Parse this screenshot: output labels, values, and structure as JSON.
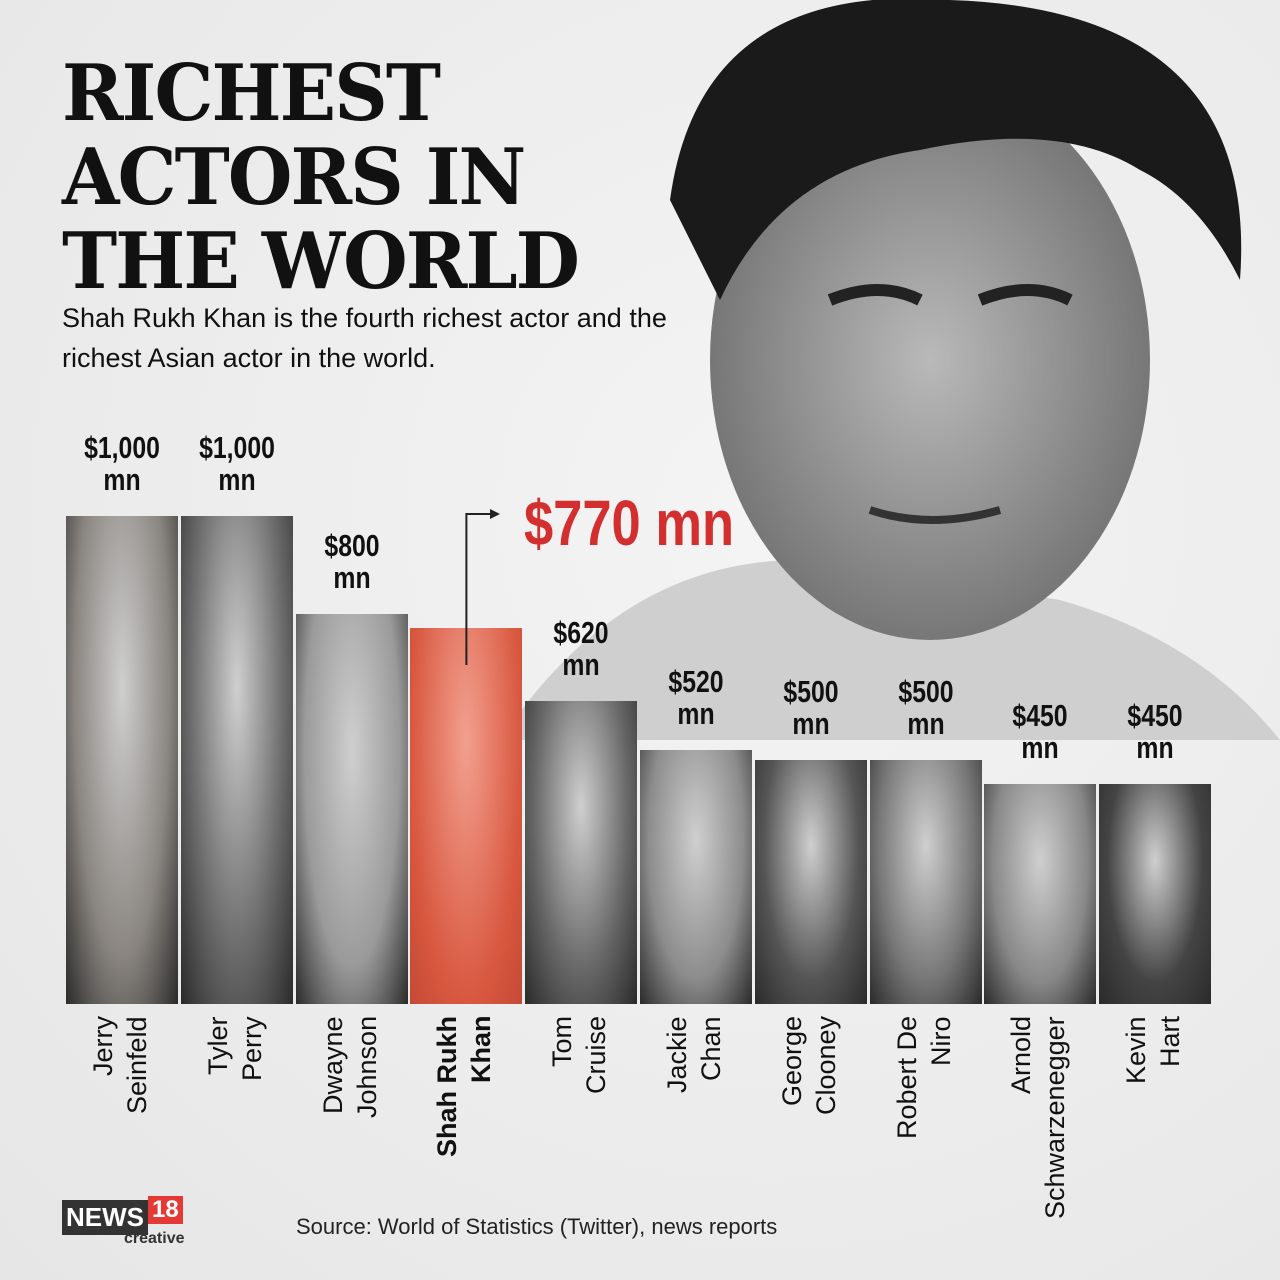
{
  "title_lines": [
    "RICHEST",
    "ACTORS IN",
    "THE WORLD"
  ],
  "subtitle": "Shah Rukh Khan is the fourth richest actor and the richest Asian actor in the world.",
  "source": "Source: World of Statistics (Twitter), news reports",
  "logo": {
    "news": "NEWS",
    "number": "18",
    "sub": "creative"
  },
  "colors": {
    "highlight": "#d32f2f",
    "text": "#111111"
  },
  "chart_data": {
    "type": "bar",
    "title": "RICHEST ACTORS IN THE WORLD",
    "unit": "$ mn",
    "ylim": [
      0,
      1000
    ],
    "highlight": "Shah Rukh Khan",
    "categories": [
      "Jerry Seinfeld",
      "Tyler Perry",
      "Dwayne Johnson",
      "Shah Rukh Khan",
      "Tom Cruise",
      "Jackie Chan",
      "George Clooney",
      "Robert De Niro",
      "Arnold Schwarzenegger",
      "Kevin Hart"
    ],
    "name_lines": [
      [
        "Jerry",
        "Seinfeld"
      ],
      [
        "Tyler",
        "Perry"
      ],
      [
        "Dwayne",
        "Johnson"
      ],
      [
        "Shah Rukh",
        "Khan"
      ],
      [
        "Tom",
        "Cruise"
      ],
      [
        "Jackie",
        "Chan"
      ],
      [
        "George",
        "Clooney"
      ],
      [
        "Robert De",
        "Niro"
      ],
      [
        "Arnold",
        "Schwarzenegger"
      ],
      [
        "Kevin",
        "Hart"
      ]
    ],
    "values": [
      1000,
      1000,
      800,
      770,
      620,
      520,
      500,
      500,
      450,
      450
    ],
    "labels": [
      [
        "$1,000",
        "mn"
      ],
      [
        "$1,000",
        "mn"
      ],
      [
        "$800",
        "mn"
      ],
      [
        "$770 mn"
      ],
      [
        "$620",
        "mn"
      ],
      [
        "$520",
        "mn"
      ],
      [
        "$500",
        "mn"
      ],
      [
        "$500",
        "mn"
      ],
      [
        "$450",
        "mn"
      ],
      [
        "$450",
        "mn"
      ]
    ]
  }
}
